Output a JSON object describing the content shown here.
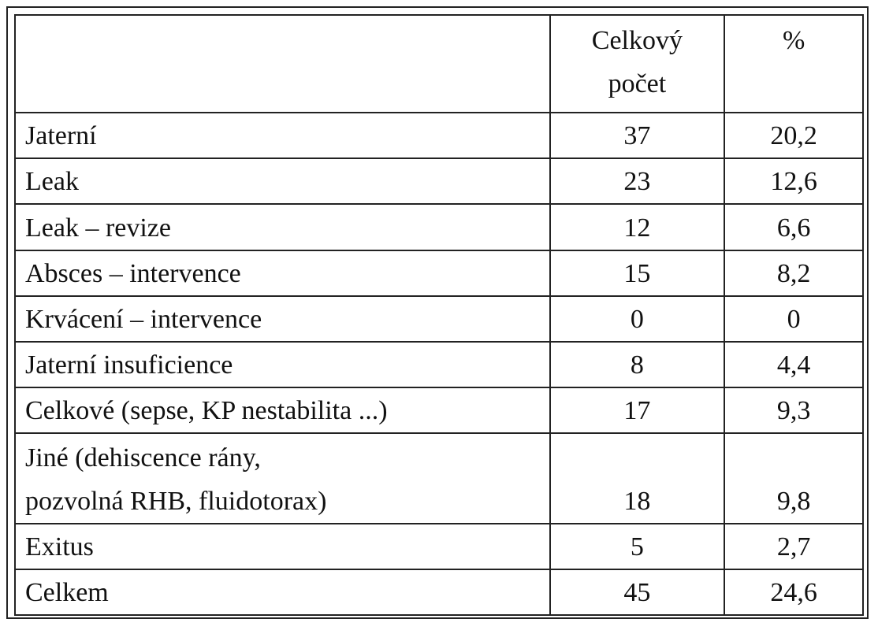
{
  "table": {
    "header": [
      [
        "Celkový",
        "počet"
      ],
      "%"
    ],
    "rows": [
      [
        "Jaterní",
        "37",
        "20,2"
      ],
      [
        "Leak",
        "23",
        "12,6"
      ],
      [
        "Leak – revize",
        "12",
        "6,6"
      ],
      [
        "Absces – intervence",
        "15",
        "8,2"
      ],
      [
        "Krvácení – intervence",
        "0",
        "0"
      ],
      [
        "Jaterní insuficience",
        "8",
        "4,4"
      ],
      [
        "Celkové (sepse, KP nestabilita ...)",
        "17",
        "9,3"
      ],
      [
        [
          "Jiné (dehiscence rány,",
          "pozvolná RHB, fluidotorax)"
        ],
        "18",
        "9,8"
      ],
      [
        "Exitus",
        "5",
        "2,7"
      ],
      [
        "Celkem",
        "45",
        "24,6"
      ]
    ]
  }
}
